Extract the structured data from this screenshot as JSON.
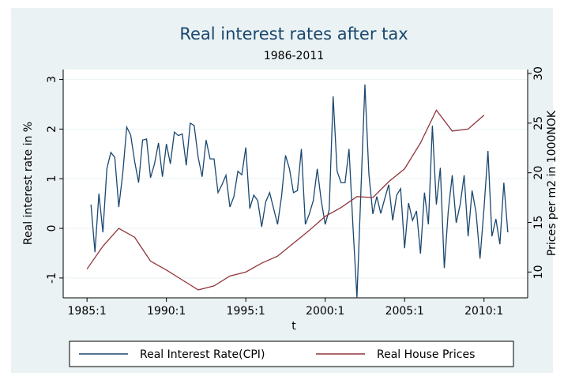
{
  "chart_data": {
    "type": "line",
    "title": "Real interest rates after tax",
    "subtitle": "1986-2011",
    "x_label": "t",
    "y_label": "Real interest rate in %",
    "y2_label": "Prices per m2 in 1000NOK",
    "xlim": [
      "1983:3",
      "2012:4"
    ],
    "xticks": [
      "1985:1",
      "1990:1",
      "1995:1",
      "2000:1",
      "2005:1",
      "2010:1"
    ],
    "ylim": [
      -1.4,
      3.2
    ],
    "yticks": [
      -1,
      0,
      1,
      2,
      3
    ],
    "y2lim": [
      7.4,
      30.4
    ],
    "y2ticks": [
      10,
      15,
      20,
      25,
      30
    ],
    "grid": true,
    "legend": "bottom",
    "series": [
      {
        "name": "Real Interest Rate(CPI)",
        "color": "#1a476f",
        "x": [
          "1985:2",
          "1985:3",
          "1985:4",
          "1986:1",
          "1986:2",
          "1986:3",
          "1986:4",
          "1987:1",
          "1987:2",
          "1987:3",
          "1987:4",
          "1988:1",
          "1988:2",
          "1988:3",
          "1988:4",
          "1989:1",
          "1989:2",
          "1989:3",
          "1989:4",
          "1990:1",
          "1990:2",
          "1990:3",
          "1990:4",
          "1991:1",
          "1991:2",
          "1991:3",
          "1991:4",
          "1992:1",
          "1992:2",
          "1992:3",
          "1992:4",
          "1993:1",
          "1993:2",
          "1993:3",
          "1993:4",
          "1994:1",
          "1994:2",
          "1994:3",
          "1994:4",
          "1995:1",
          "1995:2",
          "1995:3",
          "1995:4",
          "1996:1",
          "1996:2",
          "1996:3",
          "1996:4",
          "1997:1",
          "1997:2",
          "1997:3",
          "1997:4",
          "1998:1",
          "1998:2",
          "1998:3",
          "1998:4",
          "1999:1",
          "1999:2",
          "1999:3",
          "1999:4",
          "2000:1",
          "2000:2",
          "2000:3",
          "2000:4",
          "2001:1",
          "2001:2",
          "2001:3",
          "2001:4",
          "2002:1",
          "2002:2",
          "2002:3",
          "2002:4",
          "2003:1",
          "2003:2",
          "2003:3",
          "2003:4",
          "2004:1",
          "2004:2",
          "2004:3",
          "2004:4",
          "2005:1",
          "2005:2",
          "2005:3",
          "2005:4",
          "2006:1",
          "2006:2",
          "2006:3",
          "2006:4",
          "2007:1",
          "2007:2",
          "2007:3",
          "2007:4",
          "2008:1",
          "2008:2",
          "2008:3",
          "2008:4",
          "2009:1",
          "2009:2",
          "2009:3",
          "2009:4",
          "2010:1",
          "2010:2",
          "2010:3",
          "2010:4",
          "2011:1",
          "2011:2",
          "2011:3"
        ],
        "values": [
          0.48,
          -0.48,
          0.7,
          -0.08,
          1.2,
          1.53,
          1.43,
          0.43,
          1.1,
          2.04,
          1.88,
          1.35,
          0.92,
          1.78,
          1.8,
          1.02,
          1.3,
          1.72,
          1.04,
          1.7,
          1.3,
          1.94,
          1.87,
          1.9,
          1.27,
          2.12,
          2.07,
          1.43,
          1.04,
          1.78,
          1.4,
          1.4,
          0.72,
          0.88,
          1.07,
          0.43,
          0.64,
          1.15,
          1.08,
          1.63,
          0.4,
          0.67,
          0.56,
          0.03,
          0.53,
          0.72,
          0.4,
          0.08,
          0.64,
          1.47,
          1.2,
          0.72,
          0.76,
          1.6,
          0.08,
          0.29,
          0.56,
          1.2,
          0.56,
          0.08,
          0.37,
          2.66,
          1.15,
          0.92,
          0.92,
          1.6,
          0.03,
          -1.4,
          0.76,
          2.9,
          1.1,
          0.29,
          0.64,
          0.3,
          0.6,
          0.88,
          0.16,
          0.67,
          0.8,
          -0.4,
          0.51,
          0.16,
          0.35,
          -0.51,
          0.72,
          0.08,
          2.07,
          0.48,
          1.22,
          -0.8,
          0.35,
          1.07,
          0.11,
          0.48,
          1.07,
          -0.16,
          0.76,
          0.32,
          -0.61,
          0.4,
          1.56,
          -0.16,
          0.19,
          -0.32,
          0.92,
          -0.08
        ]
      },
      {
        "name": "Real House Prices",
        "color": "#90353b",
        "axis": "y2",
        "x": [
          "1985:1",
          "1986:1",
          "1987:1",
          "1988:1",
          "1989:1",
          "1990:1",
          "1991:1",
          "1992:1",
          "1993:1",
          "1994:1",
          "1995:1",
          "1996:1",
          "1997:1",
          "1998:1",
          "1999:1",
          "2000:1",
          "2001:1",
          "2002:1",
          "2003:1",
          "2004:1",
          "2005:1",
          "2006:1",
          "2007:1",
          "2008:1",
          "2009:1",
          "2010:1"
        ],
        "values": [
          10.3,
          12.6,
          14.4,
          13.5,
          11.1,
          10.2,
          9.2,
          8.2,
          8.6,
          9.6,
          10.0,
          10.9,
          11.6,
          12.9,
          14.2,
          15.6,
          16.5,
          17.6,
          17.5,
          19.1,
          20.4,
          23.0,
          26.3,
          24.2,
          24.4,
          25.8
        ]
      }
    ]
  }
}
